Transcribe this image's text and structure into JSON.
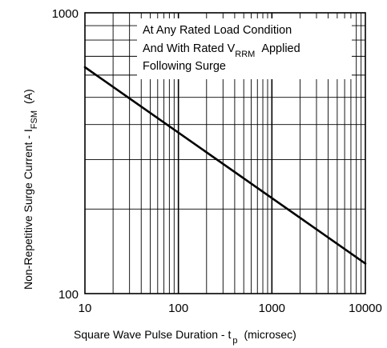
{
  "chart_data": {
    "type": "line",
    "title": "",
    "x_scale": "log",
    "y_scale": "log",
    "xlim": [
      10,
      10000
    ],
    "ylim": [
      100,
      1000
    ],
    "grid": true,
    "x_ticks": [
      "10",
      "100",
      "1000",
      "10000"
    ],
    "y_ticks": [
      "100",
      "1000"
    ],
    "xlabel": {
      "main": "Square Wave Pulse Duration - t",
      "sub": "p",
      "unit": "(microsec)"
    },
    "ylabel": {
      "main": "Non-Repetitive Surge Current - I",
      "sub": "FSM",
      "unit": "(A)"
    },
    "annotation": [
      {
        "text": "At Any Rated Load Condition"
      },
      {
        "prefix": "And With Rated V",
        "sub": "RRM",
        "suffix": "Applied"
      },
      {
        "text": "Following Surge"
      }
    ],
    "series": [
      {
        "name": "",
        "x": [
          10,
          10000
        ],
        "y": [
          640,
          128
        ]
      }
    ]
  }
}
